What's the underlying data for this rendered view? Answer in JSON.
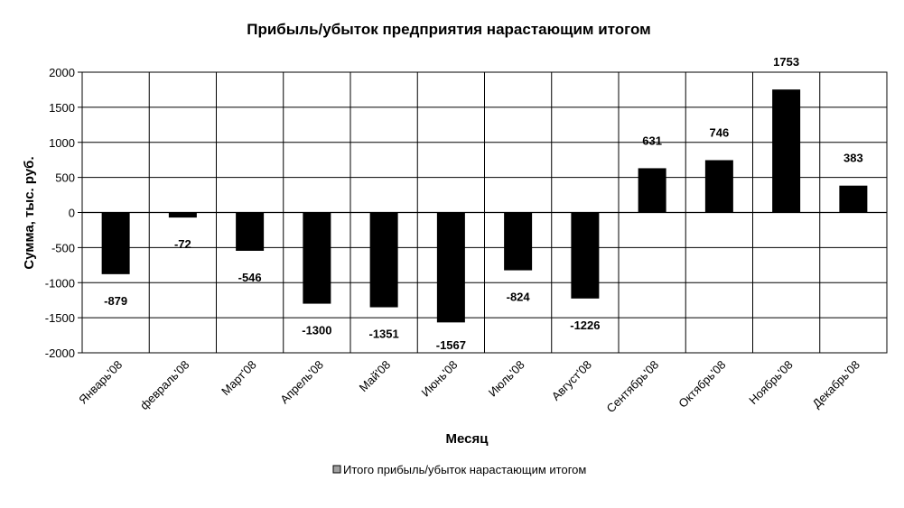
{
  "chart_data": {
    "type": "bar",
    "title": "Прибыль/убыток предприятия нарастающим итогом",
    "xlabel": "Месяц",
    "ylabel": "Сумма, тыс. руб.",
    "ylim": [
      -2000,
      2000
    ],
    "yticks": [
      2000,
      1500,
      1000,
      500,
      0,
      -500,
      -1000,
      -1500,
      -2000
    ],
    "grid": true,
    "legend_position": "bottom",
    "bar_color": "#000000",
    "categories": [
      "Январь'08",
      "февраль'08",
      "Март'08",
      "Апрель'08",
      "Май'08",
      "Июнь'08",
      "Июль'08",
      "Август'08",
      "Сентябрь'08",
      "Октябрь'08",
      "Ноябрь'08",
      "Декабрь'08"
    ],
    "series": [
      {
        "name": "Итого прибыль/убыток нарастающим итогом",
        "values": [
          -879,
          -72,
          -546,
          -1300,
          -1351,
          -1567,
          -824,
          -1226,
          631,
          746,
          1753,
          383
        ]
      }
    ]
  }
}
